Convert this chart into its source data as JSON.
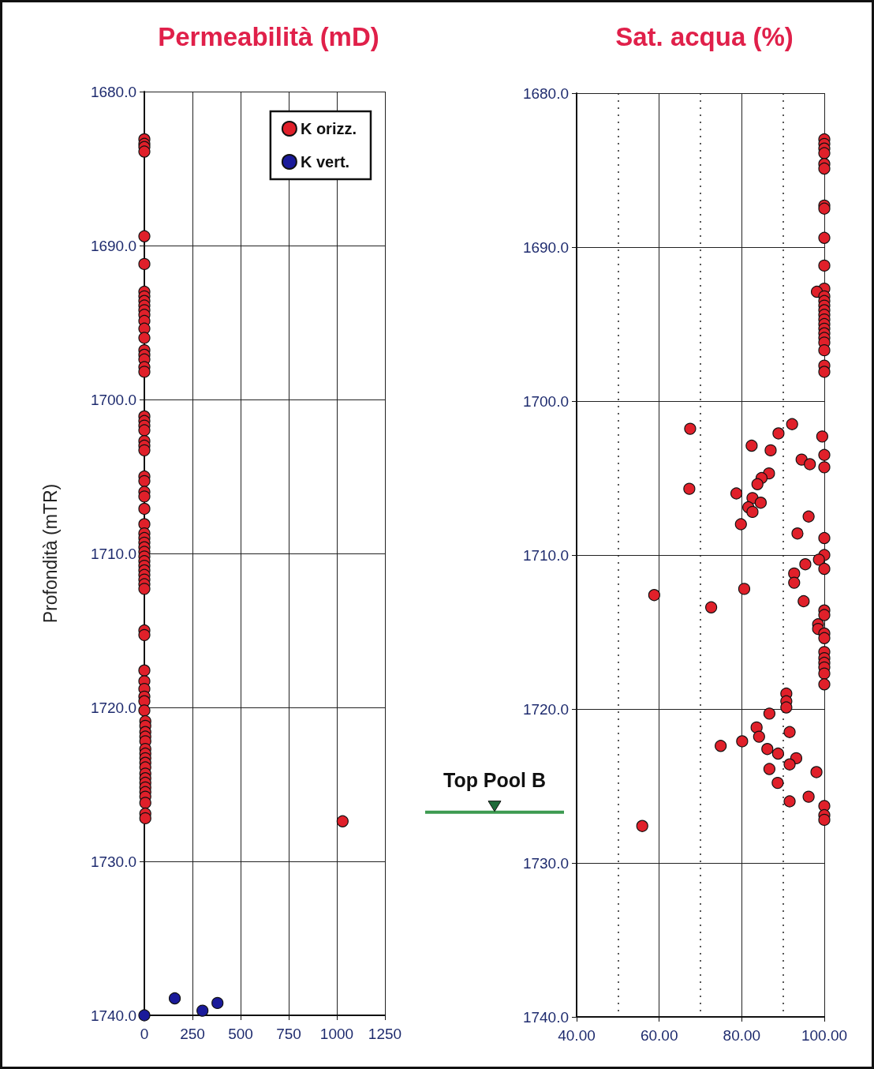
{
  "chart_data": [
    {
      "type": "scatter",
      "title": "Permeabilità (mD)",
      "ylabel": "Profondità (mTR)",
      "marker": "circle",
      "grid": true,
      "legend": "top right",
      "xlim": [
        0,
        1250
      ],
      "xticks": [
        0,
        250,
        500,
        750,
        1000,
        1250
      ],
      "ylim": [
        1740,
        1680
      ],
      "yticks": [
        {
          "value": 1680,
          "label": "1680.0"
        },
        {
          "value": 1690,
          "label": "1690.0"
        },
        {
          "value": 1700,
          "label": "1700.0"
        },
        {
          "value": 1710,
          "label": "1710.0"
        },
        {
          "value": 1720,
          "label": "1720.0"
        },
        {
          "value": 1730,
          "label": "1730.0"
        },
        {
          "value": 1740,
          "label": "1740.0"
        }
      ],
      "series": [
        {
          "name": "K orizz.",
          "color": "#e0202a",
          "x": [
            0,
            0,
            0,
            0,
            0,
            0,
            0,
            0,
            0,
            0,
            0,
            0,
            0,
            0,
            0,
            0,
            0,
            0,
            0,
            0,
            0,
            0,
            0,
            0,
            0,
            0,
            0,
            0,
            0,
            0,
            0,
            0,
            0,
            0,
            0,
            0,
            0,
            0,
            0,
            0,
            0,
            0,
            0,
            0,
            0,
            0,
            0,
            0,
            0,
            0,
            0,
            0,
            0,
            0,
            5,
            5,
            5,
            5,
            5,
            5,
            5,
            5,
            5,
            5,
            5,
            5,
            5,
            5,
            5,
            5,
            5,
            5,
            5,
            1030
          ],
          "values": [
            1683.1,
            1683.4,
            1683.6,
            1683.9,
            1689.4,
            1691.2,
            1693.0,
            1693.3,
            1693.6,
            1693.9,
            1694.2,
            1694.5,
            1694.9,
            1695.4,
            1696.0,
            1696.8,
            1697.1,
            1697.4,
            1697.9,
            1698.2,
            1701.1,
            1701.4,
            1701.7,
            1702.0,
            1702.7,
            1703.0,
            1703.3,
            1705.0,
            1705.3,
            1706.0,
            1706.3,
            1707.1,
            1708.1,
            1708.7,
            1709.0,
            1709.3,
            1709.6,
            1709.9,
            1710.2,
            1710.5,
            1710.8,
            1711.1,
            1711.4,
            1711.7,
            1712.0,
            1712.3,
            1715.0,
            1715.3,
            1717.6,
            1718.3,
            1718.8,
            1719.3,
            1719.6,
            1720.2,
            1720.9,
            1721.2,
            1721.6,
            1721.9,
            1722.2,
            1722.7,
            1723.0,
            1723.3,
            1723.6,
            1723.9,
            1724.3,
            1724.6,
            1724.9,
            1725.2,
            1725.5,
            1725.8,
            1726.2,
            1726.9,
            1727.2,
            1727.4
          ]
        },
        {
          "name": "K vert.",
          "color": "#1a1a9a",
          "x": [
            0,
            158,
            302,
            380
          ],
          "values": [
            1740.0,
            1738.9,
            1739.7,
            1739.2
          ]
        }
      ]
    },
    {
      "type": "scatter",
      "title": "Sat. acqua (%)",
      "marker": "circle",
      "grid": true,
      "xlim": [
        40,
        100
      ],
      "xticks": [
        {
          "value": 40,
          "label": "40.00"
        },
        {
          "value": 50,
          "label": null
        },
        {
          "value": 60,
          "label": "60.00"
        },
        {
          "value": 70,
          "label": null
        },
        {
          "value": 80,
          "label": "80.00"
        },
        {
          "value": 90,
          "label": null
        },
        {
          "value": 100,
          "label": "100.00"
        }
      ],
      "ylim": [
        1740,
        1680
      ],
      "yticks": [
        {
          "value": 1680,
          "label": "1680.0"
        },
        {
          "value": 1690,
          "label": "1690.0"
        },
        {
          "value": 1700,
          "label": "1700.0"
        },
        {
          "value": 1710,
          "label": "1710.0"
        },
        {
          "value": 1720,
          "label": "1720.0"
        },
        {
          "value": 1730,
          "label": "1730.0"
        },
        {
          "value": 1740,
          "label": "1740.0"
        }
      ],
      "ref_lines": [
        {
          "axis": "y",
          "value": 1726.7,
          "label": "Top Pool B",
          "color": "#3c9a50"
        }
      ],
      "series": [
        {
          "color": "#e0202a",
          "x": [
            100,
            100,
            100,
            100,
            100,
            100,
            100,
            100,
            100,
            100,
            100,
            98.2,
            100,
            100,
            100,
            100,
            100,
            100,
            100,
            100,
            100,
            100,
            100,
            100,
            100,
            100,
            67.5,
            92.2,
            88.9,
            82.4,
            99.5,
            87.0,
            94.5,
            96.5,
            100,
            100,
            86.6,
            84.8,
            83.8,
            67.3,
            78.7,
            82.6,
            84.6,
            81.6,
            82.6,
            96.2,
            79.8,
            93.5,
            100,
            100,
            98.7,
            100,
            95.4,
            92.7,
            92.7,
            58.8,
            80.6,
            72.6,
            95.0,
            100,
            100,
            98.5,
            98.5,
            100,
            100,
            100,
            100,
            100,
            100,
            100,
            100,
            90.8,
            90.8,
            90.8,
            86.7,
            83.6,
            84.2,
            91.6,
            80.1,
            74.9,
            86.2,
            88.8,
            93.2,
            91.6,
            86.7,
            98.1,
            88.7,
            96.2,
            91.6,
            100,
            100,
            100,
            55.9
          ],
          "values": [
            1683.0,
            1683.3,
            1683.6,
            1683.9,
            1684.6,
            1684.9,
            1687.3,
            1687.5,
            1689.4,
            1691.2,
            1692.7,
            1692.9,
            1693.2,
            1693.5,
            1693.8,
            1694.1,
            1694.4,
            1694.7,
            1695.0,
            1695.3,
            1695.6,
            1695.9,
            1696.2,
            1696.7,
            1697.7,
            1698.1,
            1701.8,
            1701.5,
            1702.1,
            1702.9,
            1702.3,
            1703.2,
            1703.8,
            1704.1,
            1703.5,
            1704.3,
            1704.7,
            1705.0,
            1705.4,
            1705.7,
            1706.0,
            1706.3,
            1706.6,
            1706.9,
            1707.2,
            1707.5,
            1708.0,
            1708.6,
            1708.9,
            1710.0,
            1710.3,
            1710.9,
            1710.6,
            1711.2,
            1711.8,
            1712.6,
            1712.2,
            1713.4,
            1713.0,
            1713.6,
            1713.9,
            1714.5,
            1714.8,
            1715.1,
            1715.4,
            1716.3,
            1716.7,
            1717.0,
            1717.3,
            1717.7,
            1718.4,
            1719.0,
            1719.5,
            1719.9,
            1720.3,
            1721.2,
            1721.8,
            1721.5,
            1722.1,
            1722.4,
            1722.6,
            1722.9,
            1723.2,
            1723.6,
            1723.9,
            1724.1,
            1724.8,
            1725.7,
            1726.0,
            1726.3,
            1726.9,
            1727.2,
            1727.6
          ]
        }
      ]
    }
  ]
}
